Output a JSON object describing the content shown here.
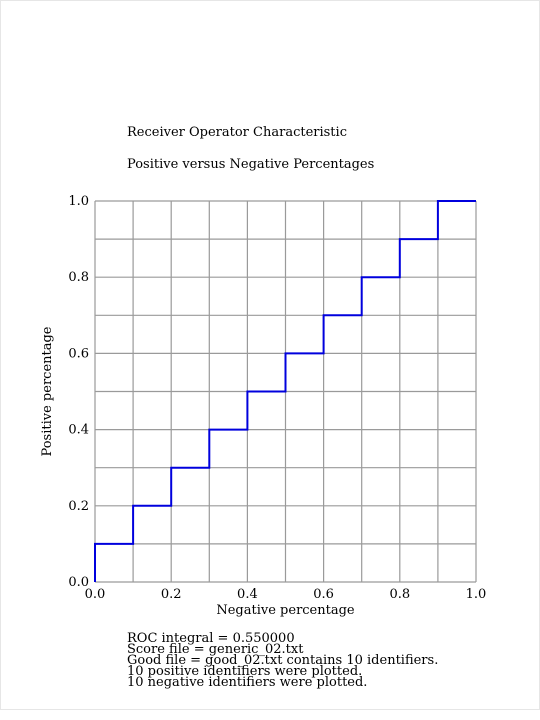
{
  "chart_data": {
    "type": "line",
    "title": "Receiver Operator Characteristic",
    "subtitle": "Positive versus Negative Percentages",
    "xlabel": "Negative percentage",
    "ylabel": "Positive percentage",
    "xlim": [
      0.0,
      1.0
    ],
    "ylim": [
      0.0,
      1.0
    ],
    "grid": true,
    "x_ticks": [
      "0.0",
      "0.2",
      "0.4",
      "0.6",
      "0.8",
      "1.0"
    ],
    "y_ticks": [
      "0.0",
      "0.2",
      "0.4",
      "0.6",
      "0.8",
      "1.0"
    ],
    "series": [
      {
        "color": "#0000dd",
        "step": true,
        "x": [
          0.0,
          0.0,
          0.1,
          0.1,
          0.2,
          0.2,
          0.3,
          0.3,
          0.4,
          0.4,
          0.5,
          0.5,
          0.6,
          0.6,
          0.7,
          0.7,
          0.8,
          0.8,
          0.9,
          0.9,
          1.0
        ],
        "y": [
          0.0,
          0.1,
          0.1,
          0.2,
          0.2,
          0.3,
          0.3,
          0.4,
          0.4,
          0.5,
          0.5,
          0.6,
          0.6,
          0.7,
          0.7,
          0.8,
          0.8,
          0.9,
          0.9,
          1.0,
          1.0
        ]
      }
    ]
  },
  "stats": {
    "integral": "ROC integral = 0.550000",
    "score_file": "Score file = generic_02.txt",
    "good_file": "Good file = good_02.txt contains 10 identifiers.",
    "positive_plotted": "10 positive identifiers were plotted.",
    "negative_plotted": "10 negative identifiers were plotted."
  },
  "colors": {
    "grid": "#9a9a9a",
    "curve": "#0000dd",
    "text": "#000000"
  }
}
